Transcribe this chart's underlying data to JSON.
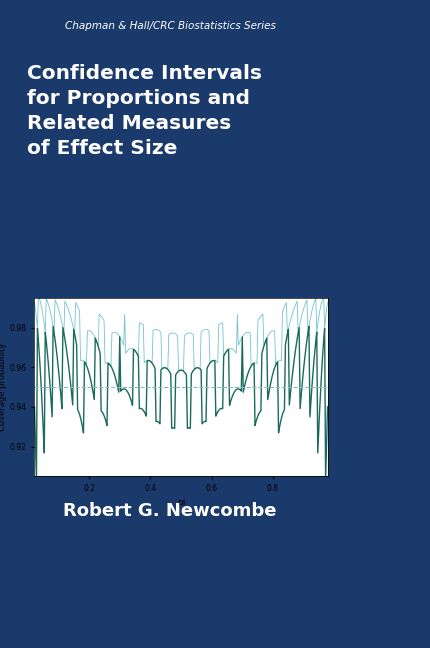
{
  "bg_dark_blue": "#1a3a6b",
  "bg_light_teal": "#a8d8d8",
  "series_color_dark": "#1a6b5a",
  "series_color_light": "#5ab8c8",
  "dashed_color": "#8ab8c8",
  "plot_bg": "#ffffff",
  "series_header": "Chapman & Hall/CRC Biostatistics Series",
  "title_line1": "Confidence Intervals",
  "title_line2": "for Proportions and",
  "title_line3": "Related Measures",
  "title_line4": "of Effect Size",
  "author": "Robert G. Newcombe",
  "xlabel": "pi",
  "ylabel": "Coverage probability",
  "yticks": [
    0.92,
    0.94,
    0.96,
    0.98
  ],
  "xticks": [
    0.2,
    0.4,
    0.6,
    0.8
  ],
  "ylim": [
    0.905,
    0.995
  ],
  "xlim": [
    0.02,
    0.98
  ],
  "hline_y": 0.95
}
